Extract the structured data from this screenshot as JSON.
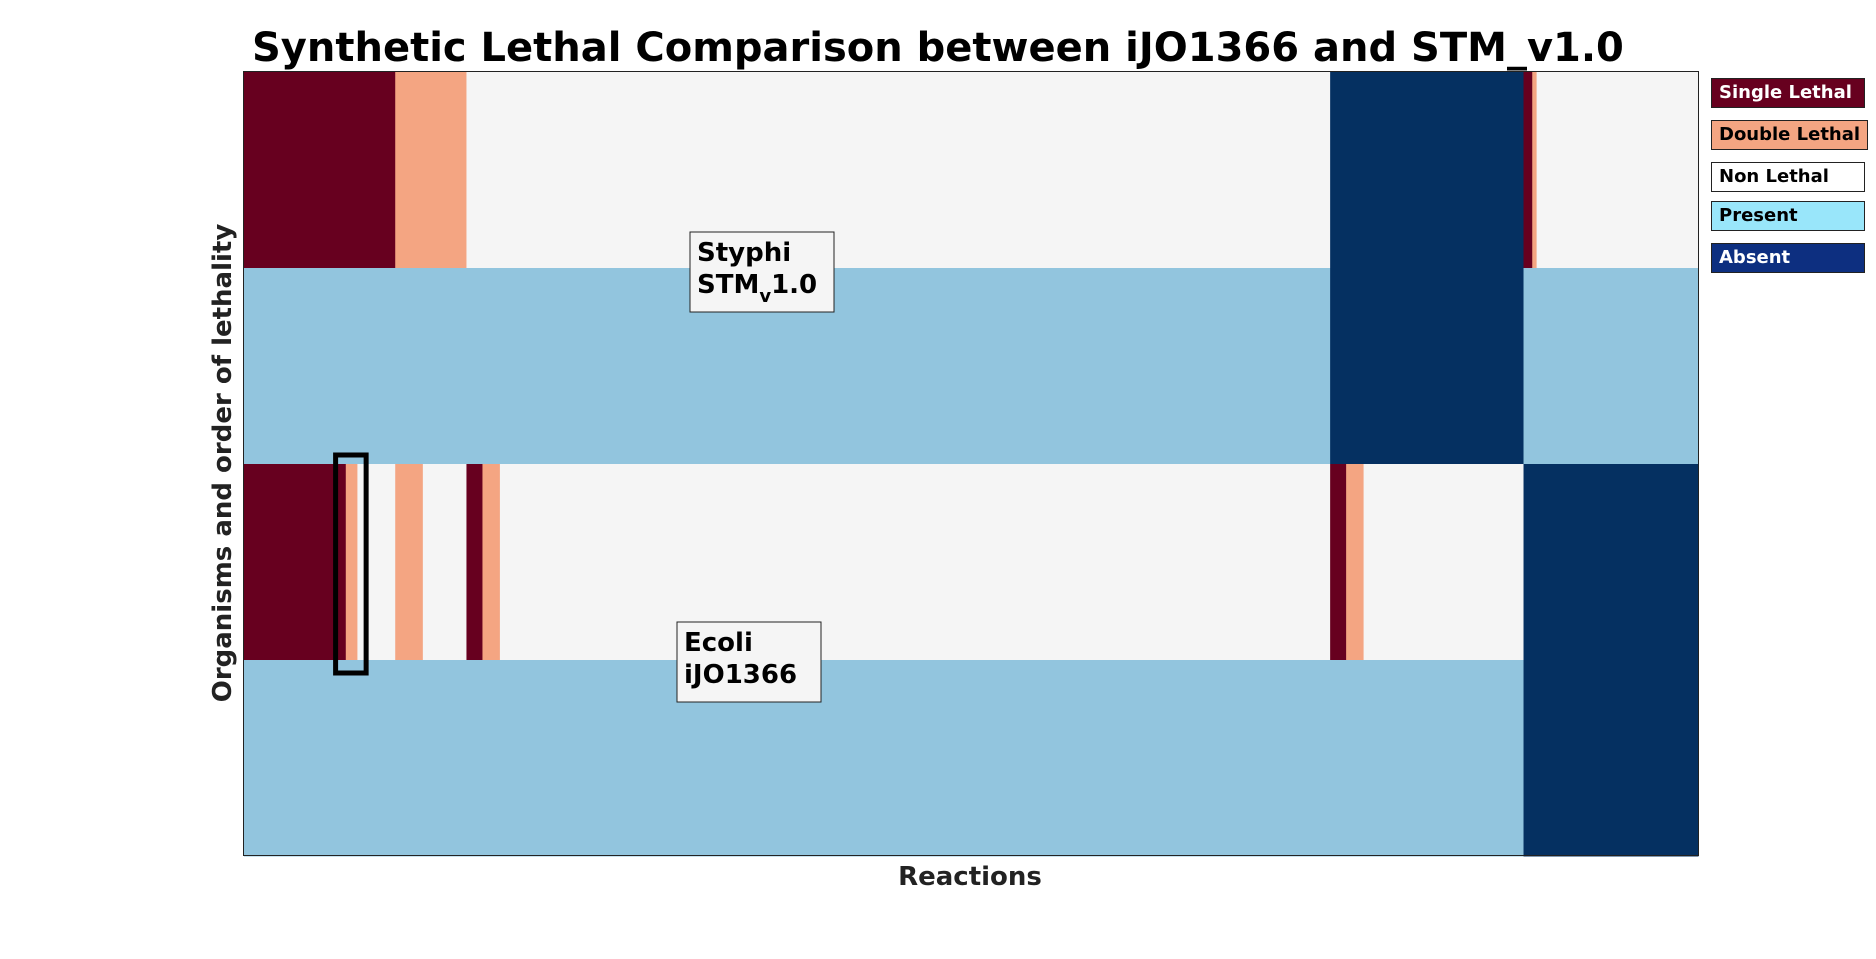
{
  "chart_data": {
    "type": "heatmap",
    "title": "Synthetic Lethal Comparison between iJO1366 and STM_v1.0",
    "xlabel": "Reactions",
    "ylabel": "Organisms and order of lethality",
    "rows": [
      {
        "segments": [
          {
            "from": 0,
            "to": 104,
            "category": "Single Lethal"
          },
          {
            "from": 104,
            "to": 153,
            "category": "Double Lethal"
          },
          {
            "from": 153,
            "to": 747,
            "category": "Non Lethal"
          },
          {
            "from": 747,
            "to": 880,
            "category": "Absent"
          },
          {
            "from": 880,
            "to": 886,
            "category": "Single Lethal"
          },
          {
            "from": 886,
            "to": 889,
            "category": "Double Lethal"
          },
          {
            "from": 889,
            "to": 1000,
            "category": "Non Lethal"
          }
        ]
      },
      {
        "segments": [
          {
            "from": 0,
            "to": 747,
            "category": "Present"
          },
          {
            "from": 747,
            "to": 880,
            "category": "Absent"
          },
          {
            "from": 880,
            "to": 1000,
            "category": "Present"
          }
        ]
      },
      {
        "segments": [
          {
            "from": 0,
            "to": 70,
            "category": "Single Lethal"
          },
          {
            "from": 70,
            "to": 78,
            "category": "Double Lethal"
          },
          {
            "from": 78,
            "to": 104,
            "category": "Non Lethal"
          },
          {
            "from": 104,
            "to": 123,
            "category": "Double Lethal"
          },
          {
            "from": 123,
            "to": 153,
            "category": "Non Lethal"
          },
          {
            "from": 153,
            "to": 164,
            "category": "Single Lethal"
          },
          {
            "from": 164,
            "to": 176,
            "category": "Double Lethal"
          },
          {
            "from": 176,
            "to": 747,
            "category": "Non Lethal"
          },
          {
            "from": 747,
            "to": 758,
            "category": "Single Lethal"
          },
          {
            "from": 758,
            "to": 770,
            "category": "Double Lethal"
          },
          {
            "from": 770,
            "to": 880,
            "category": "Non Lethal"
          },
          {
            "from": 880,
            "to": 1000,
            "category": "Absent"
          }
        ]
      },
      {
        "segments": [
          {
            "from": 0,
            "to": 880,
            "category": "Present"
          },
          {
            "from": 880,
            "to": 1000,
            "category": "Absent"
          }
        ]
      }
    ],
    "x_range": [
      0,
      1000
    ],
    "highlight": {
      "from": 63,
      "to": 84,
      "rows": [
        2
      ]
    },
    "annotations": [
      {
        "lines": [
          "Styphi",
          "STM",
          "v",
          "1.0"
        ],
        "near_row": 0
      },
      {
        "lines": [
          "Ecoli",
          "iJO1366"
        ],
        "near_row": 2
      }
    ],
    "legend": [
      {
        "label": "Single Lethal",
        "color": "#67001f",
        "text_color": "#ffffff"
      },
      {
        "label": "Double Lethal",
        "color": "#f4a582",
        "text_color": "#000000"
      },
      {
        "label": "Non Lethal",
        "color": "#ffffff",
        "text_color": "#000000"
      },
      {
        "label": "Present",
        "color": "#99e6fa",
        "text_color": "#000000"
      },
      {
        "label": "Absent",
        "color": "#0d2f80",
        "text_color": "#ffffff"
      }
    ],
    "legend_placement": "right",
    "cell_colors": {
      "Single Lethal": "#67001f",
      "Double Lethal": "#f4a582",
      "Non Lethal": "#f5f5f5",
      "Present": "#92c5de",
      "Absent": "#053061"
    }
  }
}
